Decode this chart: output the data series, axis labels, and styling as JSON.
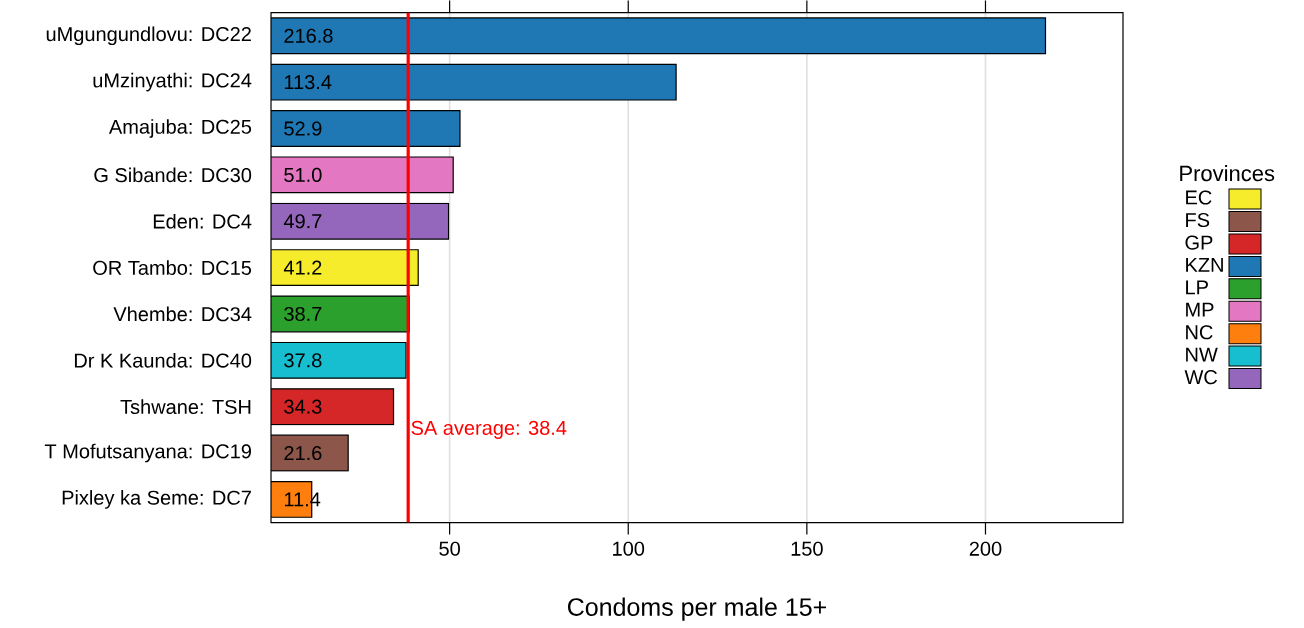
{
  "chart_data": {
    "type": "bar",
    "orientation": "horizontal",
    "xlabel": "Condoms per male 15+",
    "legend_title": "Provinces",
    "categories": [
      "uMgungundlovu: DC22",
      "uMzinyathi: DC24",
      "Amajuba: DC25",
      "G Sibande: DC30",
      "Eden: DC4",
      "OR Tambo: DC15",
      "Vhembe: DC34",
      "Dr K Kaunda: DC40",
      "Tshwane: TSH",
      "T Mofutsanyana: DC19",
      "Pixley ka Seme: DC7"
    ],
    "series": [
      {
        "name": "EC",
        "color": "#f6ec2c",
        "values": [
          null,
          null,
          null,
          null,
          null,
          41.2,
          null,
          null,
          null,
          null,
          null
        ],
        "value_labels": [
          null,
          null,
          null,
          null,
          null,
          "41.2",
          null,
          null,
          null,
          null,
          null
        ]
      },
      {
        "name": "FS",
        "color": "#8c564b",
        "values": [
          null,
          null,
          null,
          null,
          null,
          null,
          null,
          null,
          null,
          21.6,
          null
        ],
        "value_labels": [
          null,
          null,
          null,
          null,
          null,
          null,
          null,
          null,
          null,
          "21.6",
          null
        ]
      },
      {
        "name": "GP",
        "color": "#d62728",
        "values": [
          null,
          null,
          null,
          null,
          null,
          null,
          null,
          null,
          34.3,
          null,
          null
        ],
        "value_labels": [
          null,
          null,
          null,
          null,
          null,
          null,
          null,
          null,
          "34.3",
          null,
          null
        ]
      },
      {
        "name": "KZN",
        "color": "#1f77b4",
        "values": [
          216.8,
          113.4,
          52.9,
          null,
          null,
          null,
          null,
          null,
          null,
          null,
          null
        ],
        "value_labels": [
          "216.8",
          "113.4",
          "52.9",
          null,
          null,
          null,
          null,
          null,
          null,
          null,
          null
        ]
      },
      {
        "name": "LP",
        "color": "#2ca02c",
        "values": [
          null,
          null,
          null,
          null,
          null,
          null,
          38.7,
          null,
          null,
          null,
          null
        ],
        "value_labels": [
          null,
          null,
          null,
          null,
          null,
          null,
          "38.7",
          null,
          null,
          null,
          null
        ]
      },
      {
        "name": "MP",
        "color": "#e377c2",
        "values": [
          null,
          null,
          null,
          51.0,
          null,
          null,
          null,
          null,
          null,
          null,
          null
        ],
        "value_labels": [
          null,
          null,
          null,
          "51.0",
          null,
          null,
          null,
          null,
          null,
          null,
          null
        ]
      },
      {
        "name": "NC",
        "color": "#ff7f0e",
        "values": [
          null,
          null,
          null,
          null,
          null,
          null,
          null,
          null,
          null,
          null,
          11.4
        ],
        "value_labels": [
          null,
          null,
          null,
          null,
          null,
          null,
          null,
          null,
          null,
          null,
          "11.4"
        ]
      },
      {
        "name": "NW",
        "color": "#17becf",
        "values": [
          null,
          null,
          null,
          null,
          null,
          null,
          null,
          37.8,
          null,
          null,
          null
        ],
        "value_labels": [
          null,
          null,
          null,
          null,
          null,
          null,
          null,
          "37.8",
          null,
          null,
          null
        ]
      },
      {
        "name": "WC",
        "color": "#9467bd",
        "values": [
          null,
          null,
          null,
          null,
          49.7,
          null,
          null,
          null,
          null,
          null,
          null
        ],
        "value_labels": [
          null,
          null,
          null,
          null,
          "49.7",
          null,
          null,
          null,
          null,
          null,
          null
        ]
      }
    ],
    "xlim": [
      0,
      238.5
    ],
    "xticks": [
      50,
      100,
      150,
      200
    ],
    "grid": "x",
    "legend": "right",
    "ref_lines": [
      {
        "axis": "x",
        "value": 38.4,
        "label": "SA average: 38.4",
        "color": "#ff0000"
      }
    ]
  }
}
